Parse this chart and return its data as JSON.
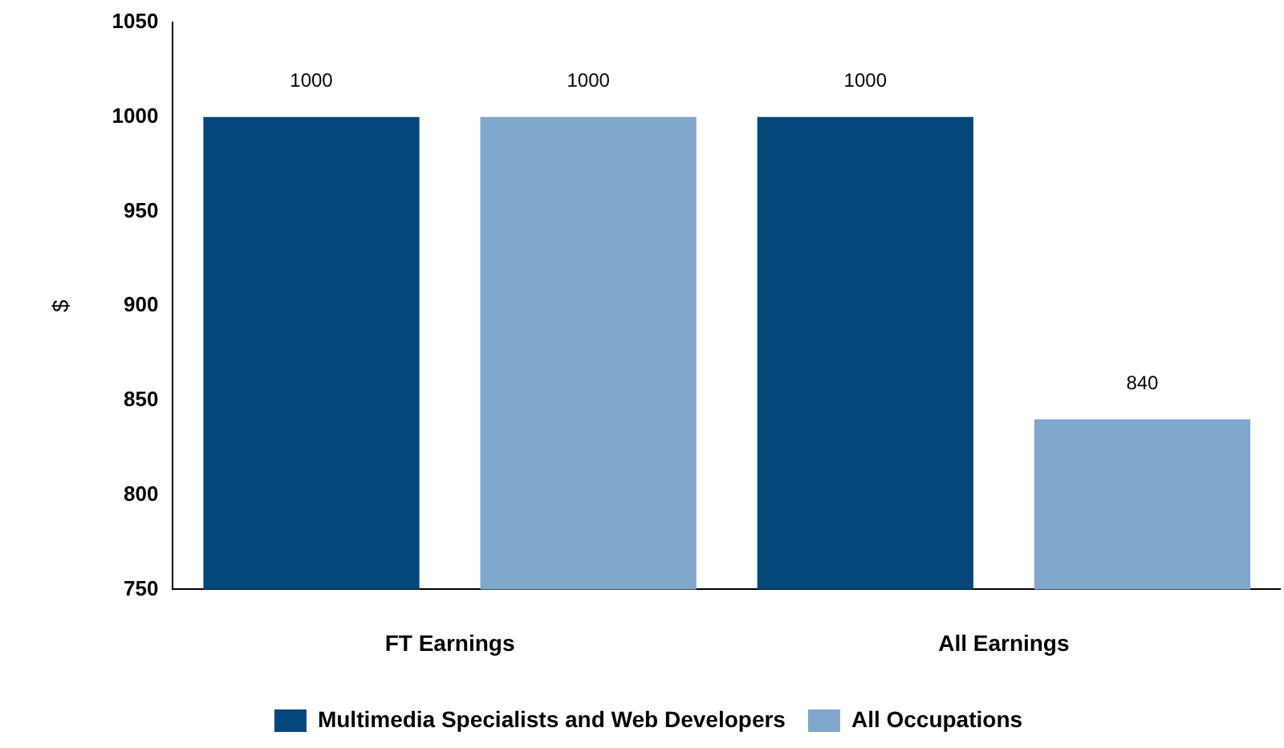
{
  "chart_data": {
    "type": "bar",
    "ylabel": "$",
    "categories": [
      "FT Earnings",
      "All Earnings"
    ],
    "series": [
      {
        "name": "Multimedia Specialists and Web Developers",
        "color": "#03477c",
        "values": [
          1000,
          1000
        ]
      },
      {
        "name": "All Occupations",
        "color": "#7fa6cb",
        "values": [
          1000,
          840
        ]
      }
    ],
    "ylim": [
      750,
      1050
    ],
    "yticks": [
      750,
      800,
      850,
      900,
      950,
      1000,
      1050
    ],
    "grid": false,
    "legend": "bottom",
    "data_labels": true
  }
}
